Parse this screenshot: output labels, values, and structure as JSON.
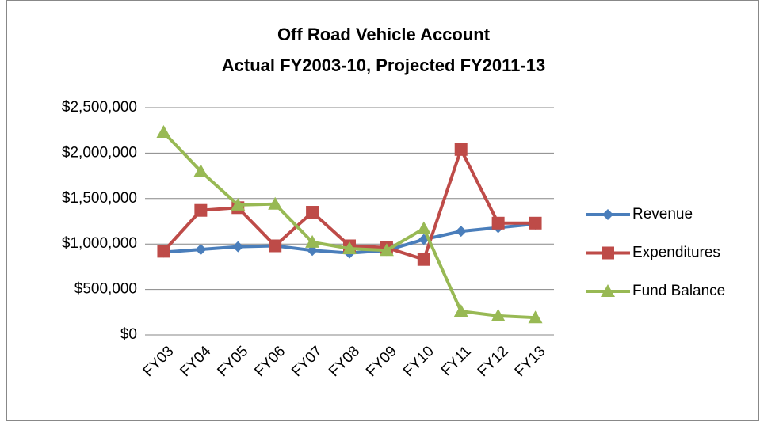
{
  "chart_data": {
    "type": "line",
    "title": "Off Road Vehicle Account",
    "subtitle": "Actual FY2003-10, Projected FY2011-13",
    "categories": [
      "FY03",
      "FY04",
      "FY05",
      "FY06",
      "FY07",
      "FY08",
      "FY09",
      "FY10",
      "FY11",
      "FY12",
      "FY13"
    ],
    "series": [
      {
        "name": "Revenue",
        "color": "#4a7ebb",
        "marker": "diamond",
        "values": [
          910000,
          940000,
          970000,
          980000,
          930000,
          900000,
          930000,
          1050000,
          1140000,
          1180000,
          1220000
        ]
      },
      {
        "name": "Expenditures",
        "color": "#be4b48",
        "marker": "square",
        "values": [
          920000,
          1370000,
          1400000,
          980000,
          1350000,
          980000,
          960000,
          830000,
          2040000,
          1230000,
          1230000
        ]
      },
      {
        "name": "Fund Balance",
        "color": "#98b954",
        "marker": "triangle",
        "values": [
          2230000,
          1800000,
          1430000,
          1440000,
          1020000,
          950000,
          930000,
          1170000,
          260000,
          210000,
          190000
        ]
      }
    ],
    "ylim": [
      0,
      2500000
    ],
    "yticks": [
      {
        "value": 0,
        "label": "$0"
      },
      {
        "value": 500000,
        "label": "$500,000"
      },
      {
        "value": 1000000,
        "label": "$1,000,000"
      },
      {
        "value": 1500000,
        "label": "$1,500,000"
      },
      {
        "value": 2000000,
        "label": "$2,000,000"
      },
      {
        "value": 2500000,
        "label": "$2,500,000"
      }
    ],
    "grid": true,
    "legend": "right"
  }
}
